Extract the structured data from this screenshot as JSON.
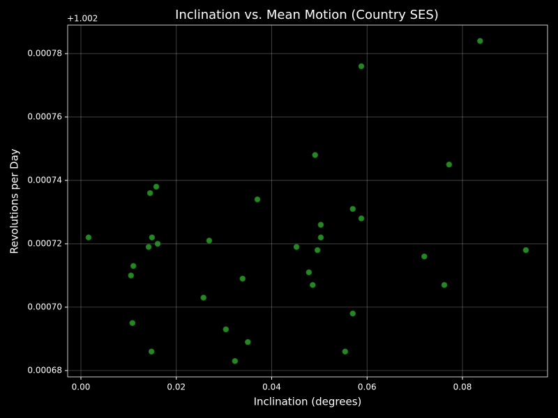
{
  "chart_data": {
    "type": "scatter",
    "title": "Inclination vs. Mean Motion (Country SES)",
    "xlabel": "Inclination (degrees)",
    "ylabel": "Revolutions per Day",
    "y_offset_label": "+1.002",
    "color": "#2ca02c",
    "edgecolor": "#1a5e1a",
    "grid": true,
    "xlim": [
      -0.00278,
      0.09784
    ],
    "ylim": [
      0.000678,
      0.000789
    ],
    "xticks": [
      {
        "value": 0,
        "label": "0.00"
      },
      0.02,
      0.04,
      0.06,
      0.08
    ],
    "yticks": [
      0.00068,
      {
        "value": 0.0007,
        "label": "0.00070"
      },
      0.00072,
      0.00074,
      0.00076,
      0.00078
    ],
    "x": [
      0.0837,
      0.0588,
      0.0491,
      0.0772,
      0.0158,
      0.0145,
      0.037,
      0.057,
      0.0588,
      0.0503,
      0.0016,
      0.0149,
      0.0503,
      0.0269,
      0.0161,
      0.0142,
      0.0452,
      0.0496,
      0.0933,
      0.072,
      0.011,
      0.0478,
      0.0105,
      0.0339,
      0.0486,
      0.0762,
      0.0257,
      0.057,
      0.0108,
      0.0304,
      0.035,
      0.0554,
      0.0148,
      0.0323
    ],
    "values": [
      0.000784,
      0.000776,
      0.000748,
      0.000745,
      0.000738,
      0.000736,
      0.000734,
      0.000731,
      0.000728,
      0.000726,
      0.000722,
      0.000722,
      0.000722,
      0.000721,
      0.00072,
      0.000719,
      0.000719,
      0.000718,
      0.000718,
      0.000716,
      0.000713,
      0.000711,
      0.00071,
      0.000709,
      0.000707,
      0.000707,
      0.000703,
      0.000698,
      0.000695,
      0.000693,
      0.000689,
      0.000686,
      0.000686,
      0.000683
    ]
  }
}
